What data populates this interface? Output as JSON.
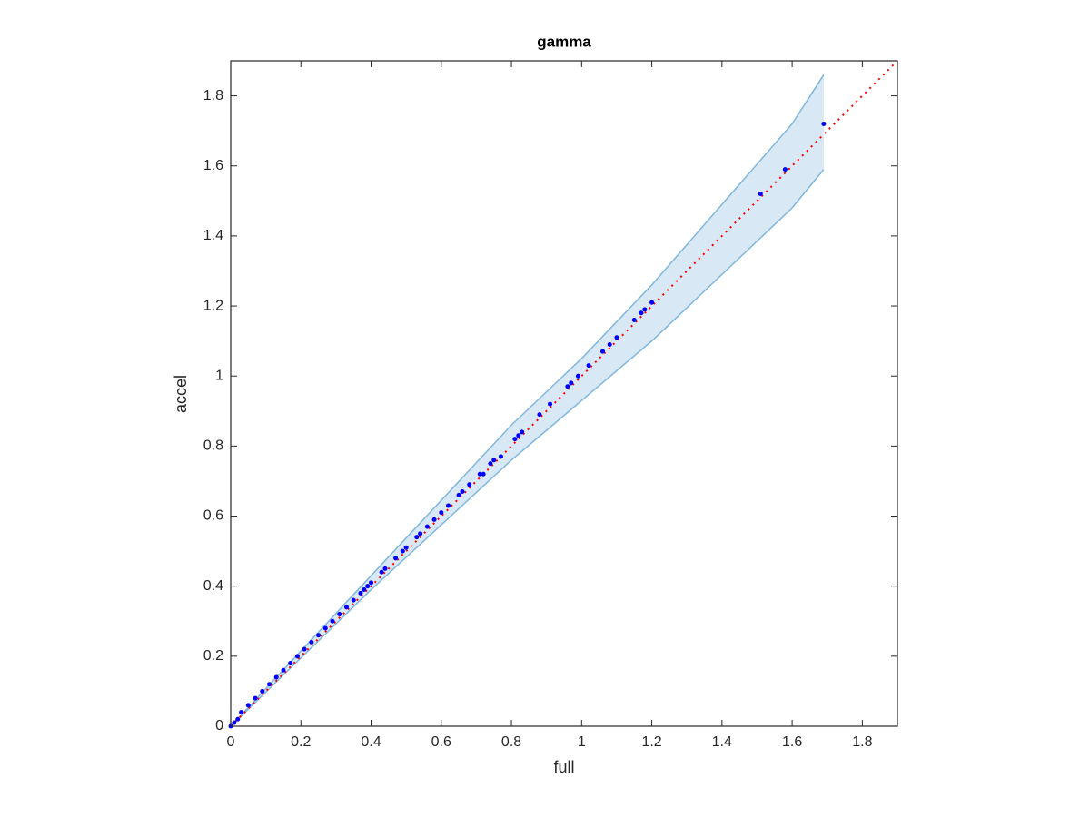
{
  "chart_data": {
    "type": "scatter",
    "title": "gamma",
    "x_label": "full",
    "y_label": "accel",
    "xlim": [
      0,
      1.9
    ],
    "ylim": [
      0,
      1.9
    ],
    "xticks": [
      0,
      0.2,
      0.4,
      0.6,
      0.8,
      1,
      1.2,
      1.4,
      1.6,
      1.8
    ],
    "yticks": [
      0,
      0.2,
      0.4,
      0.6,
      0.8,
      1,
      1.2,
      1.4,
      1.6,
      1.8
    ],
    "grid": false,
    "band": {
      "color": "#7fb6dd",
      "fill": "#d9e8f5",
      "x": [
        0,
        0.4,
        0.8,
        1.0,
        1.2,
        1.6,
        1.69
      ],
      "upper": [
        0,
        0.43,
        0.86,
        1.05,
        1.26,
        1.72,
        1.86
      ],
      "lower": [
        0,
        0.39,
        0.76,
        0.93,
        1.1,
        1.48,
        1.59
      ]
    },
    "reference": {
      "color": "#ff0000",
      "x": [
        0,
        1.9
      ],
      "values": [
        0,
        1.9
      ]
    },
    "points": {
      "color": "#0000ff",
      "x": [
        1.69,
        1.58,
        1.51,
        1.2,
        1.18,
        1.17,
        1.15,
        1.1,
        1.08,
        1.06,
        1.02,
        0.99,
        0.97,
        0.96,
        0.91,
        0.88,
        0.83,
        0.82,
        0.81,
        0.77,
        0.75,
        0.74,
        0.72,
        0.71,
        0.68,
        0.66,
        0.65,
        0.62,
        0.6,
        0.58,
        0.56,
        0.54,
        0.53,
        0.5,
        0.49,
        0.47,
        0.44,
        0.43,
        0.4,
        0.39,
        0.38,
        0.37,
        0.35,
        0.33,
        0.31,
        0.29,
        0.27,
        0.25,
        0.23,
        0.21,
        0.19,
        0.17,
        0.15,
        0.13,
        0.11,
        0.09,
        0.07,
        0.05,
        0.03,
        0.02,
        0.01,
        0
      ],
      "values": [
        1.72,
        1.59,
        1.52,
        1.21,
        1.19,
        1.18,
        1.16,
        1.11,
        1.09,
        1.07,
        1.03,
        1.0,
        0.98,
        0.97,
        0.92,
        0.89,
        0.84,
        0.83,
        0.82,
        0.77,
        0.76,
        0.75,
        0.72,
        0.72,
        0.69,
        0.67,
        0.66,
        0.63,
        0.61,
        0.59,
        0.57,
        0.55,
        0.54,
        0.51,
        0.5,
        0.48,
        0.45,
        0.44,
        0.41,
        0.4,
        0.39,
        0.38,
        0.36,
        0.34,
        0.32,
        0.3,
        0.28,
        0.26,
        0.24,
        0.22,
        0.2,
        0.18,
        0.16,
        0.14,
        0.12,
        0.1,
        0.08,
        0.06,
        0.04,
        0.02,
        0.01,
        0
      ]
    }
  }
}
